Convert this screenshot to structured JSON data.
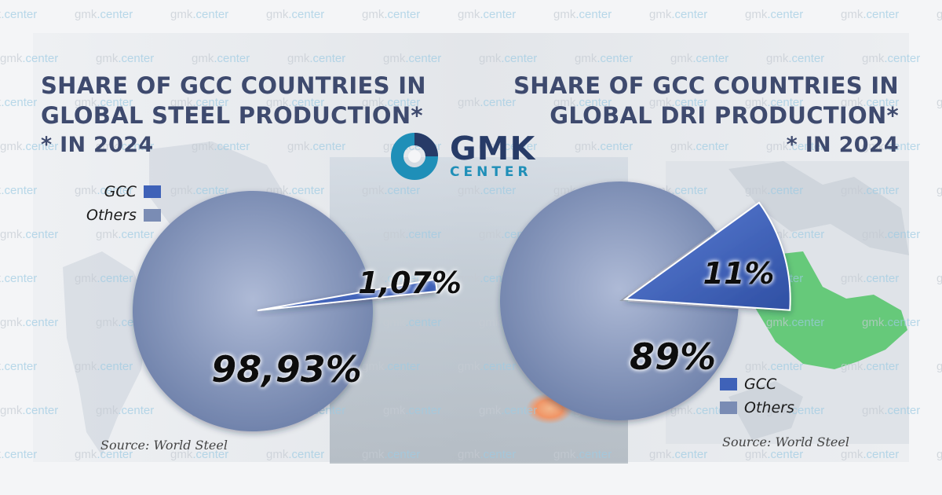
{
  "colors": {
    "gcc": "#3f62b8",
    "others": "#7a8cb4",
    "title": "#3e4a6e",
    "map_green": "#66c97a",
    "brand_dark": "#273b67",
    "brand_light": "#1f8fb8"
  },
  "watermark": {
    "prefix": "gmk",
    "suffix": ".center"
  },
  "logo": {
    "word1": "GMK",
    "word2": "CENTER",
    "icon": "gmk-ring-logo-icon"
  },
  "chart_data": [
    {
      "type": "pie",
      "title_lines": [
        "SHARE OF GCC COUNTRIES IN",
        "GLOBAL STEEL PRODUCTION*"
      ],
      "subtitle": "* IN 2024",
      "slices": [
        {
          "name": "GCC",
          "value": 1.07,
          "label": "1,07%"
        },
        {
          "name": "Others",
          "value": 98.93,
          "label": "98,93%"
        }
      ],
      "legend": [
        "GCC",
        "Others"
      ],
      "legend_position": "top-left",
      "source": "Source: World Steel"
    },
    {
      "type": "pie",
      "title_lines": [
        "SHARE OF GCC COUNTRIES IN",
        "GLOBAL DRI PRODUCTION*"
      ],
      "subtitle": "* IN 2024",
      "slices": [
        {
          "name": "GCC",
          "value": 11,
          "label": "11%"
        },
        {
          "name": "Others",
          "value": 89,
          "label": "89%"
        }
      ],
      "legend": [
        "GCC",
        "Others"
      ],
      "legend_position": "bottom-right",
      "source": "Source: World Steel"
    }
  ]
}
